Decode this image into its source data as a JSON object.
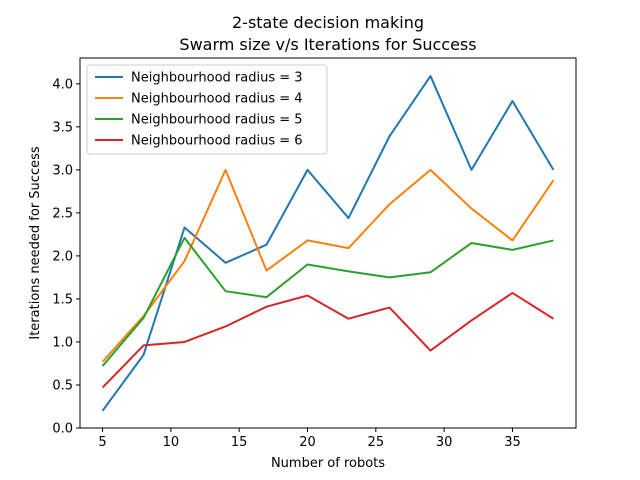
{
  "chart_data": {
    "type": "line",
    "title": "2-state decision making",
    "subtitle": "Swarm size v/s Iterations for Success",
    "xlabel": "Number of robots",
    "ylabel": "Iterations needed for Success",
    "xlim": [
      3.35,
      39.65
    ],
    "ylim": [
      0.0,
      4.3
    ],
    "x_ticks": [
      5,
      10,
      15,
      20,
      25,
      30,
      35
    ],
    "x_tick_labels": [
      "5",
      "10",
      "15",
      "20",
      "25",
      "30",
      "35"
    ],
    "y_ticks": [
      0.0,
      0.5,
      1.0,
      1.5,
      2.0,
      2.5,
      3.0,
      3.5,
      4.0
    ],
    "y_tick_labels": [
      "0.0",
      "0.5",
      "1.0",
      "1.5",
      "2.0",
      "2.5",
      "3.0",
      "3.5",
      "4.0"
    ],
    "grid": false,
    "legend_position": "top-left",
    "x": [
      5,
      8,
      11,
      14,
      17,
      20,
      23,
      26,
      29,
      32,
      35,
      38
    ],
    "series": [
      {
        "name": "Neighbourhood radius = 3",
        "color": "#1f77b4",
        "values": [
          0.2,
          0.85,
          2.33,
          1.92,
          2.13,
          3.0,
          2.44,
          3.39,
          4.09,
          3.0,
          3.8,
          3.0
        ]
      },
      {
        "name": "Neighbourhood radius = 4",
        "color": "#ff7f0e",
        "values": [
          0.77,
          1.3,
          1.94,
          3.0,
          1.83,
          2.18,
          2.09,
          2.6,
          3.0,
          2.55,
          2.18,
          2.88
        ]
      },
      {
        "name": "Neighbourhood radius = 5",
        "color": "#2ca02c",
        "values": [
          0.72,
          1.28,
          2.21,
          1.59,
          1.52,
          1.9,
          1.82,
          1.75,
          1.81,
          2.15,
          2.07,
          2.18
        ]
      },
      {
        "name": "Neighbourhood radius = 6",
        "color": "#d62728",
        "values": [
          0.47,
          0.96,
          1.0,
          1.18,
          1.41,
          1.54,
          1.27,
          1.4,
          0.9,
          1.25,
          1.57,
          1.27
        ]
      }
    ]
  }
}
